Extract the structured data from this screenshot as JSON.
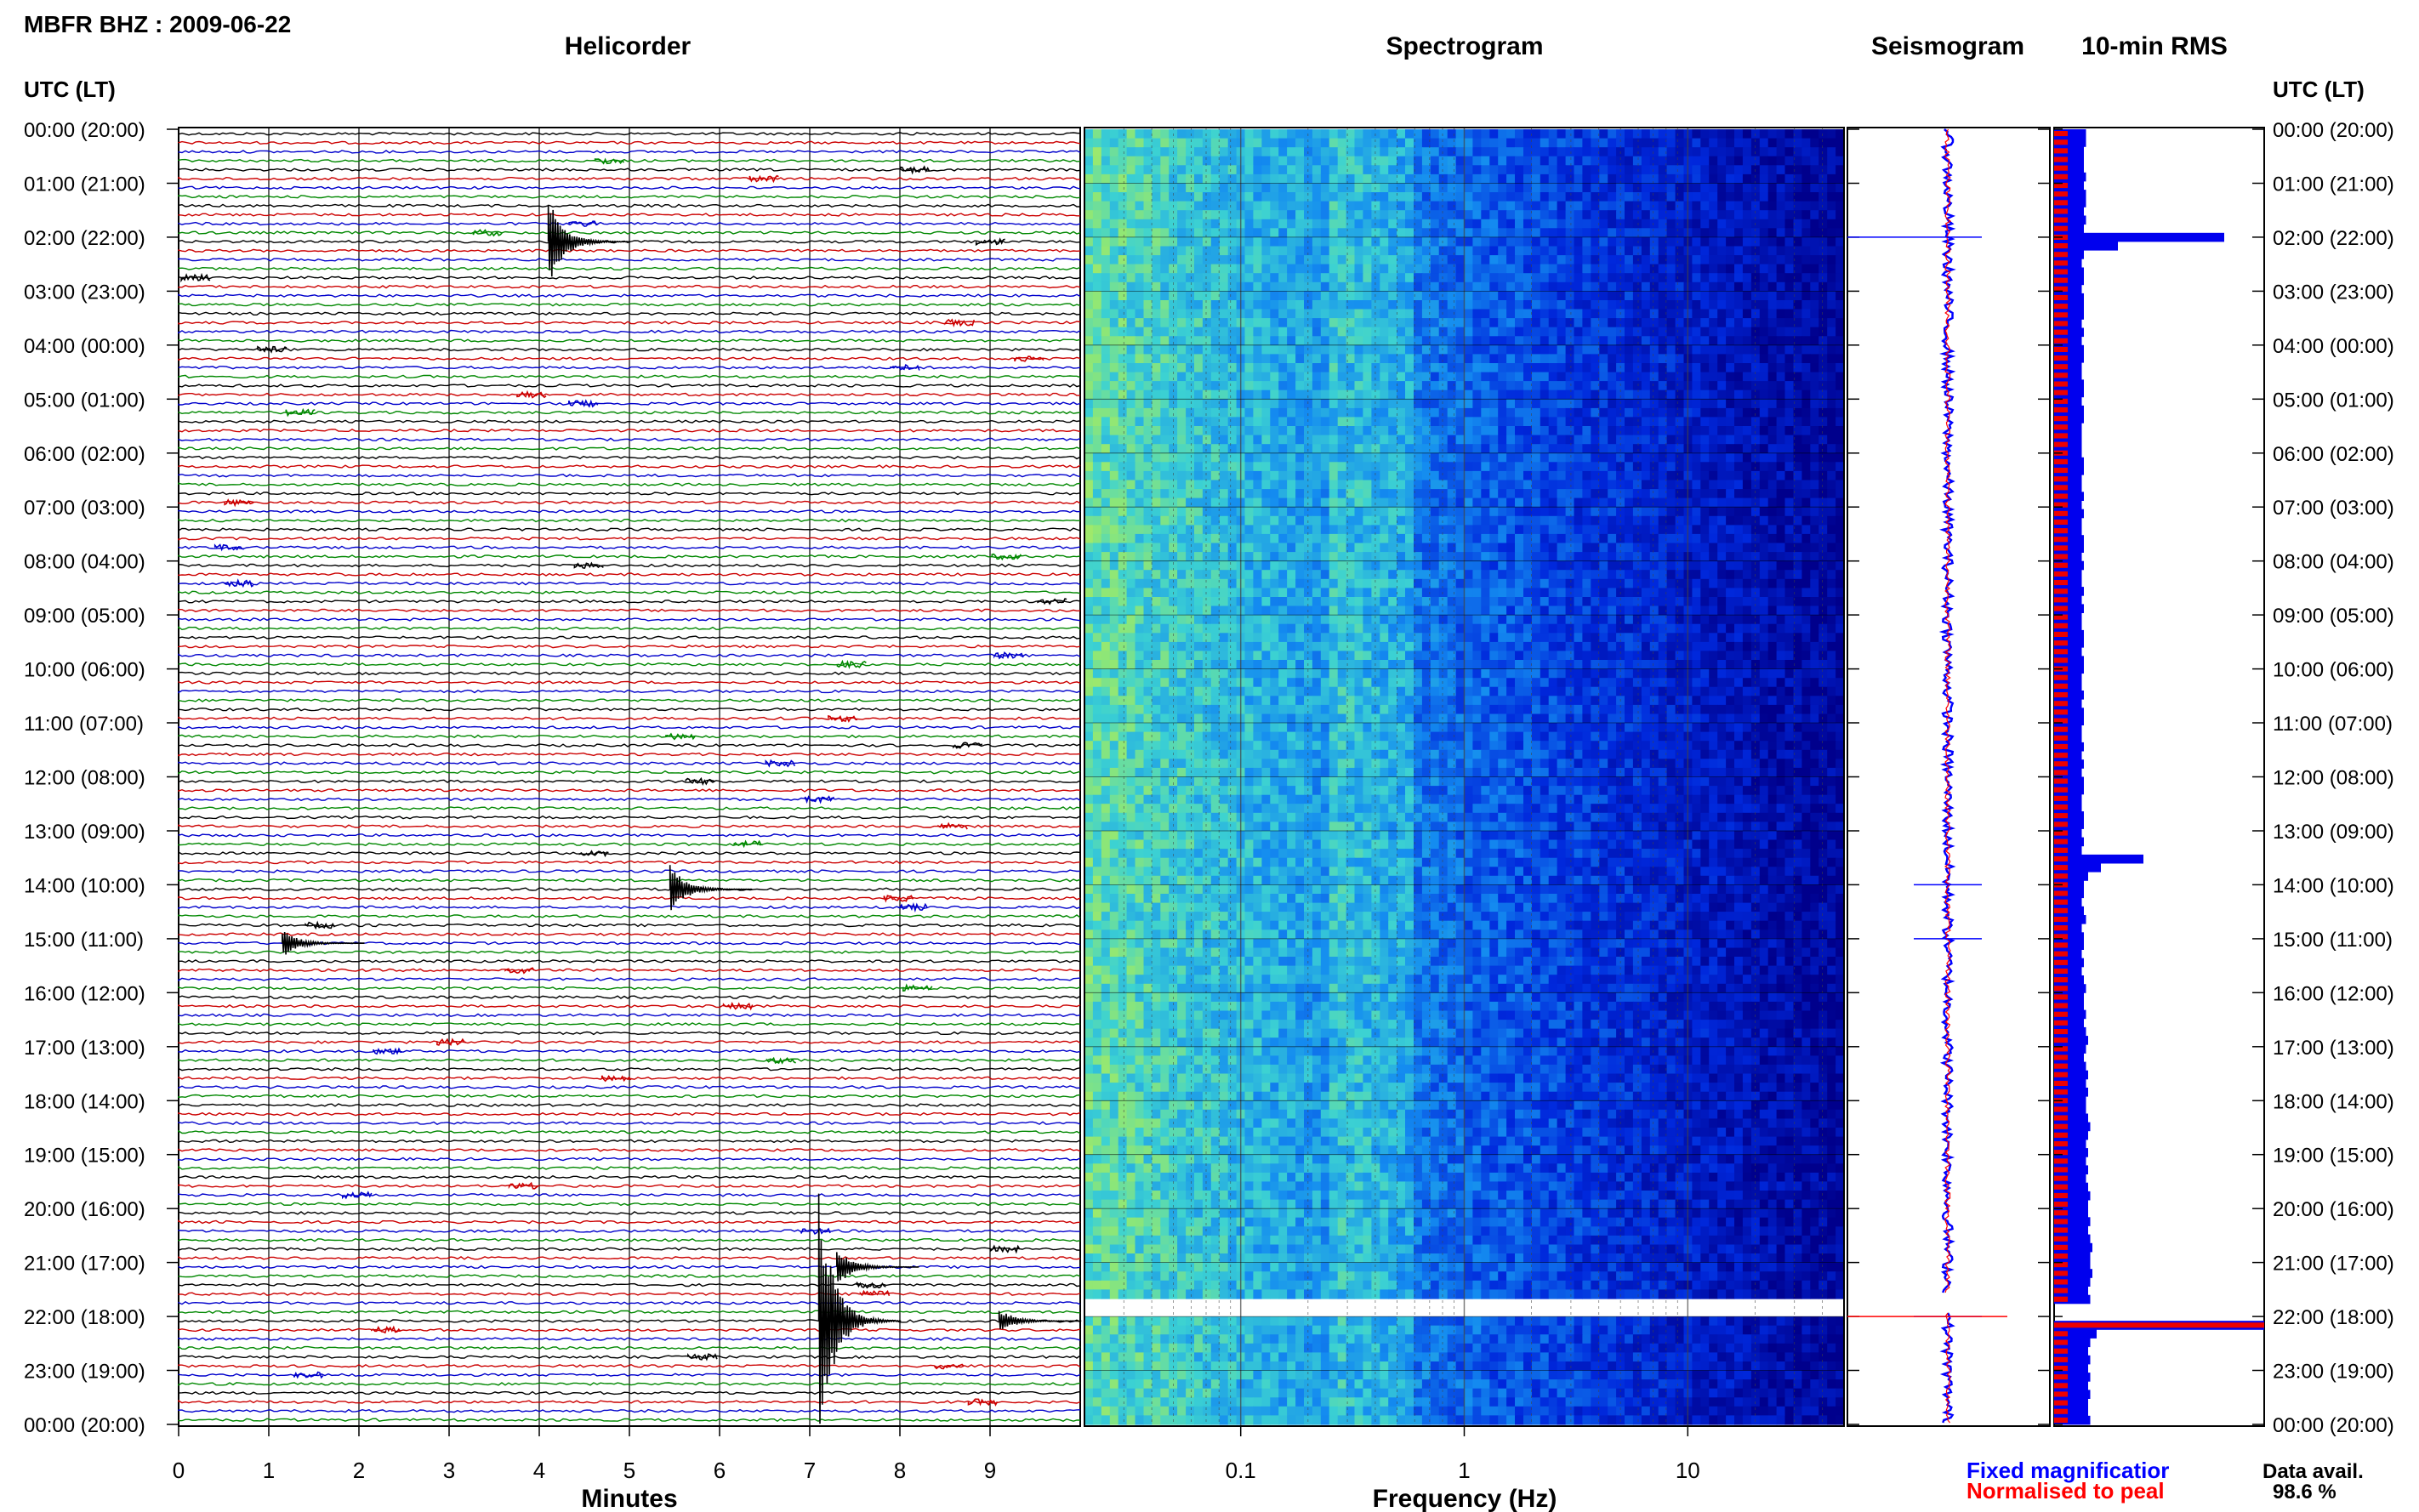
{
  "station_title": "MBFR BHZ : 2009-06-22",
  "panels": {
    "helicorder": "Helicorder",
    "spectrogram": "Spectrogram",
    "seismogram": "Seismogram",
    "rms": "10-min RMS"
  },
  "axis_header_left": "UTC (LT)",
  "axis_header_right": "UTC (LT)",
  "footer": {
    "xlabel_helicorder": "Minutes",
    "xlabel_spectrogram": "Frequency (Hz)",
    "legend_fixed": "Fixed magnificatior",
    "legend_normalised": "Normalised to peal",
    "data_avail_label": "Data avail.",
    "data_avail_value": "98.6 %"
  },
  "colors": {
    "trace_cycle": [
      "#000000",
      "#cc0000",
      "#0000cc",
      "#008800"
    ],
    "fixed": "#0000ff",
    "normalised": "#ff0000"
  },
  "chart_data": [
    {
      "type": "line",
      "name": "helicorder",
      "xlabel": "Minutes",
      "xlim": [
        0,
        10
      ],
      "x_ticks": [
        "0",
        "1",
        "2",
        "3",
        "4",
        "5",
        "6",
        "7",
        "8",
        "9"
      ],
      "rows_per_hour": 6,
      "hours": 24,
      "row_labels": [
        "00:00 (20:00)",
        "01:00 (21:00)",
        "02:00 (22:00)",
        "03:00 (23:00)",
        "04:00 (00:00)",
        "05:00 (01:00)",
        "06:00 (02:00)",
        "07:00 (03:00)",
        "08:00 (04:00)",
        "09:00 (05:00)",
        "10:00 (06:00)",
        "11:00 (07:00)",
        "12:00 (08:00)",
        "13:00 (09:00)",
        "14:00 (10:00)",
        "15:00 (11:00)",
        "16:00 (12:00)",
        "17:00 (13:00)",
        "18:00 (14:00)",
        "19:00 (15:00)",
        "20:00 (16:00)",
        "21:00 (17:00)",
        "22:00 (18:00)",
        "23:00 (19:00)",
        "00:00 (20:00)"
      ],
      "events": [
        {
          "hour": 2.0,
          "minute": 4.1,
          "amplitude": 0.9
        },
        {
          "hour": 14.0,
          "minute": 5.45,
          "amplitude": 0.5
        },
        {
          "hour": 15.0,
          "minute": 1.15,
          "amplitude": 0.3
        },
        {
          "hour": 22.0,
          "minute": 7.1,
          "amplitude": 1.0
        },
        {
          "hour": 21.0,
          "minute": 7.3,
          "amplitude": 0.4
        },
        {
          "hour": 22.0,
          "minute": 9.1,
          "amplitude": 0.25
        }
      ]
    },
    {
      "type": "heatmap",
      "name": "spectrogram",
      "xlabel": "Frequency (Hz)",
      "x_scale": "log",
      "xlim": [
        0.02,
        50
      ],
      "x_ticks": [
        "0.1",
        "1",
        "10"
      ],
      "data_gap_hours": [
        21.6,
        21.95
      ]
    },
    {
      "type": "line",
      "name": "seismogram",
      "series": [
        {
          "name": "Fixed magnificatior",
          "color": "#0000ff"
        },
        {
          "name": "Normalised to peal",
          "color": "#ff0000"
        }
      ]
    },
    {
      "type": "bar",
      "name": "10-min RMS",
      "description_hours": [
        0,
        24
      ],
      "values_relative": [
        0.15,
        0.15,
        0.14,
        0.14,
        0.14,
        0.15,
        0.14,
        0.15,
        0.15,
        0.14,
        0.15,
        0.14,
        0.8,
        0.3,
        0.14,
        0.13,
        0.14,
        0.14,
        0.13,
        0.14,
        0.14,
        0.14,
        0.13,
        0.14,
        0.13,
        0.14,
        0.14,
        0.13,
        0.13,
        0.14,
        0.14,
        0.13,
        0.14,
        0.14,
        0.13,
        0.13,
        0.13,
        0.13,
        0.14,
        0.14,
        0.13,
        0.13,
        0.14,
        0.13,
        0.14,
        0.13,
        0.13,
        0.14,
        0.14,
        0.13,
        0.14,
        0.13,
        0.13,
        0.14,
        0.13,
        0.14,
        0.13,
        0.13,
        0.14,
        0.14,
        0.13,
        0.14,
        0.14,
        0.13,
        0.13,
        0.14,
        0.13,
        0.14,
        0.14,
        0.13,
        0.13,
        0.14,
        0.13,
        0.14,
        0.13,
        0.14,
        0.14,
        0.13,
        0.13,
        0.14,
        0.14,
        0.13,
        0.14,
        0.13,
        0.42,
        0.22,
        0.16,
        0.14,
        0.14,
        0.13,
        0.14,
        0.15,
        0.13,
        0.14,
        0.14,
        0.13,
        0.14,
        0.13,
        0.14,
        0.15,
        0.14,
        0.14,
        0.15,
        0.14,
        0.15,
        0.16,
        0.15,
        0.14,
        0.15,
        0.16,
        0.15,
        0.16,
        0.15,
        0.15,
        0.16,
        0.17,
        0.16,
        0.15,
        0.16,
        0.15,
        0.16,
        0.15,
        0.16,
        0.17,
        0.16,
        0.16,
        0.17,
        0.16,
        0.17,
        0.18,
        0.17,
        0.17,
        0.18,
        0.17,
        0.16,
        0.17,
        0.0,
        0.0,
        1.6,
        0.2,
        0.17,
        0.16,
        0.17,
        0.16,
        0.17,
        0.16,
        0.17,
        0.16,
        0.16,
        0.17
      ]
    }
  ]
}
